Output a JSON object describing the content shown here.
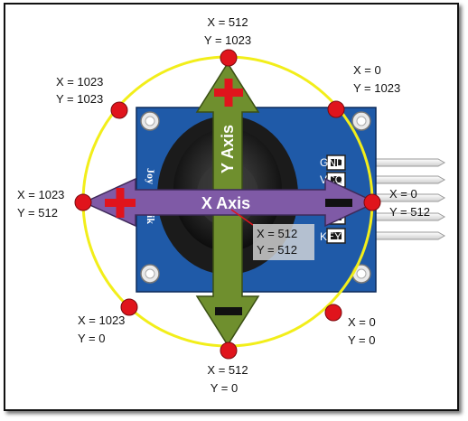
{
  "colors": {
    "board": "#1f5aa8",
    "circle": "#f2ee1a",
    "marker": "#e0141c",
    "y_arrow": "#6f8f2e",
    "x_arrow": "#7f5aa6",
    "plus": "#e0141c",
    "minus": "#111111"
  },
  "diagram": {
    "y_axis_label": "Y Axis",
    "x_axis_label": "X Axis",
    "board_brand": "Joy",
    "board_brand_2": "ik",
    "pins": [
      "GND",
      "VCC",
      "",
      "",
      "KEY"
    ],
    "center_label": {
      "x": "X = 512",
      "y": "Y = 512"
    },
    "positions": [
      {
        "id": "top",
        "x": "X = 512",
        "y": "Y = 1023"
      },
      {
        "id": "top-right",
        "x": "X = 0",
        "y": "Y = 1023"
      },
      {
        "id": "right",
        "x": "X = 0",
        "y": "Y = 512"
      },
      {
        "id": "bottom-right",
        "x": "X = 0",
        "y": "Y = 0"
      },
      {
        "id": "bottom",
        "x": "X = 512",
        "y": "Y = 0"
      },
      {
        "id": "bottom-left",
        "x": "X = 1023",
        "y": "Y = 0"
      },
      {
        "id": "left",
        "x": "X = 1023",
        "y": "Y = 512"
      },
      {
        "id": "top-left",
        "x": "X = 1023",
        "y": "Y = 1023"
      }
    ]
  }
}
